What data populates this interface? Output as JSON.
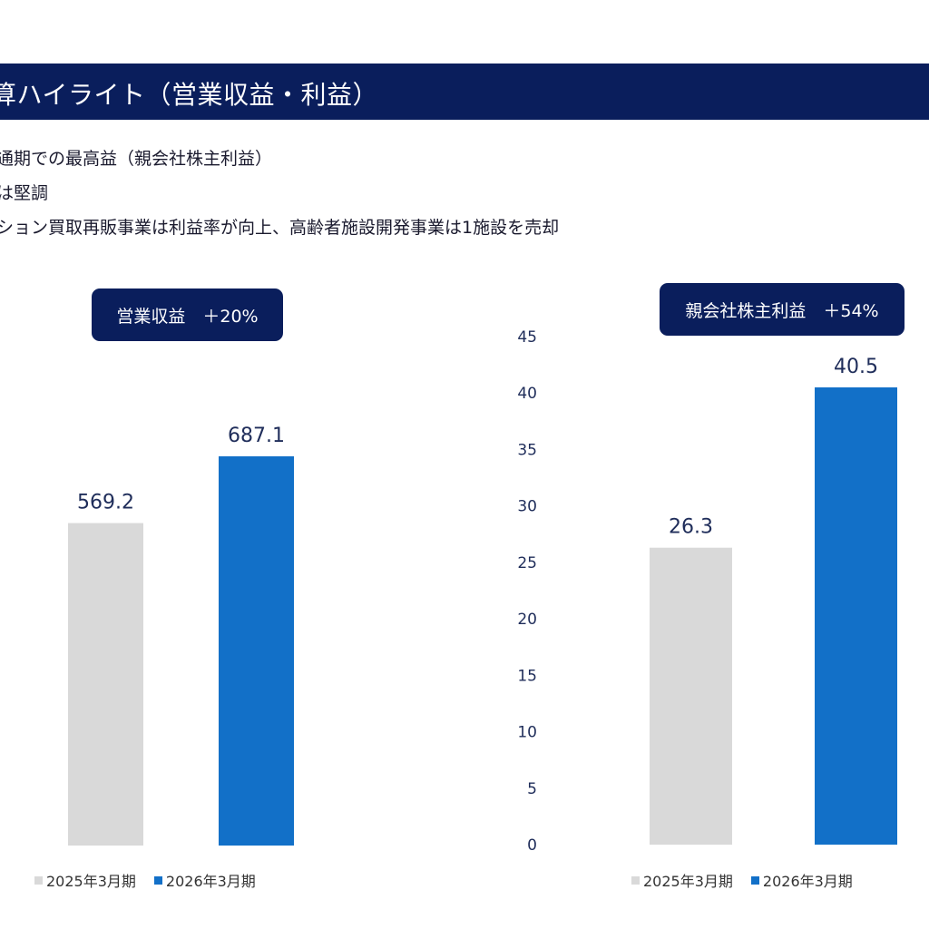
{
  "header": {
    "title": "算ハイライト（営業収益・利益）"
  },
  "bullets": [
    "通期での最高益（親会社株主利益）",
    "は堅調",
    "ション買取再販事業は利益率が向上、高齢者施設開発事業は1施設を売却"
  ],
  "colors": {
    "navy": "#0a1e5c",
    "grey_bar": "#d9d9d9",
    "blue_bar": "#1270c8",
    "label_text": "#1f2d5a"
  },
  "chart_data": [
    {
      "type": "bar",
      "badge": "営業収益　＋20%",
      "categories": [
        "2025年3月期",
        "2026年3月期"
      ],
      "values": [
        569.2,
        687.1
      ],
      "value_labels": [
        "569.2",
        "687.1"
      ],
      "colors": [
        "#d9d9d9",
        "#1270c8"
      ],
      "ylim": [
        0,
        900
      ],
      "yticks_shown": false,
      "legend": [
        "2025年3月期",
        "2026年3月期"
      ],
      "legend_position": "bottom"
    },
    {
      "type": "bar",
      "badge": "親会社株主利益　＋54%",
      "categories": [
        "2025年3月期",
        "2026年3月期"
      ],
      "values": [
        26.3,
        40.5
      ],
      "value_labels": [
        "26.3",
        "40.5"
      ],
      "colors": [
        "#d9d9d9",
        "#1270c8"
      ],
      "ylim": [
        0,
        45
      ],
      "yticks": [
        "0",
        "5",
        "10",
        "15",
        "20",
        "25",
        "30",
        "35",
        "40",
        "45"
      ],
      "yticks_shown": true,
      "legend": [
        "2025年3月期",
        "2026年3月期"
      ],
      "legend_position": "bottom"
    }
  ]
}
